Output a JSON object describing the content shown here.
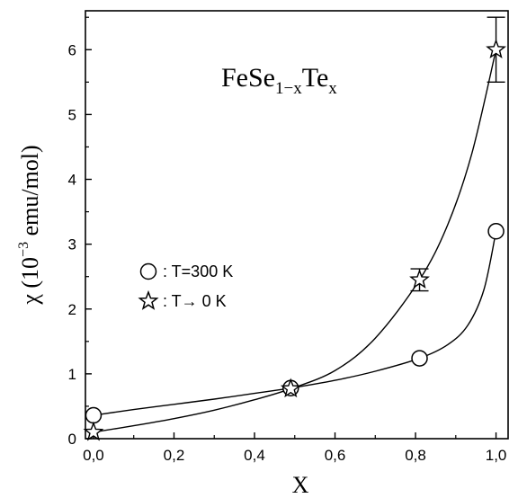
{
  "chart_data": {
    "type": "scatter",
    "title": {
      "base": "FeSe",
      "sub1": "1−x",
      "mid": "Te",
      "sub2": "x"
    },
    "xlabel": "X",
    "ylabel": {
      "prefix": "χ (10",
      "exponent": "−3",
      "suffix": " emu/mol)"
    },
    "xlim": [
      -0.02,
      1.03
    ],
    "ylim": [
      0,
      6.6
    ],
    "x_ticks": [
      0.0,
      0.2,
      0.4,
      0.6,
      0.8,
      1.0
    ],
    "x_tick_labels": [
      "0,0",
      "0,2",
      "0,4",
      "0,6",
      "0,8",
      "1,0"
    ],
    "y_ticks": [
      0,
      1,
      2,
      3,
      4,
      5,
      6
    ],
    "y_tick_labels": [
      "0",
      "1",
      "2",
      "3",
      "4",
      "5",
      "6"
    ],
    "grid": false,
    "legend_position": "middle-left",
    "series": [
      {
        "name": ": T=300 K",
        "marker": "circle",
        "x": [
          0.0,
          0.49,
          0.81,
          1.0
        ],
        "y": [
          0.36,
          0.78,
          1.24,
          3.2
        ],
        "fit_curve": [
          [
            0.0,
            0.36
          ],
          [
            0.1,
            0.45
          ],
          [
            0.2,
            0.53
          ],
          [
            0.3,
            0.61
          ],
          [
            0.4,
            0.7
          ],
          [
            0.49,
            0.78
          ],
          [
            0.6,
            0.9
          ],
          [
            0.7,
            1.04
          ],
          [
            0.81,
            1.24
          ],
          [
            0.88,
            1.45
          ],
          [
            0.93,
            1.75
          ],
          [
            0.97,
            2.3
          ],
          [
            1.0,
            3.2
          ]
        ]
      },
      {
        "name": ": T→ 0 K",
        "marker": "star",
        "x": [
          0.0,
          0.49,
          0.81,
          1.0
        ],
        "y": [
          0.1,
          0.77,
          2.45,
          6.0
        ],
        "yerr": [
          0.03,
          0.04,
          0.17,
          0.5
        ],
        "fit_curve": [
          [
            0.0,
            0.1
          ],
          [
            0.1,
            0.2
          ],
          [
            0.2,
            0.31
          ],
          [
            0.3,
            0.44
          ],
          [
            0.4,
            0.6
          ],
          [
            0.49,
            0.77
          ],
          [
            0.6,
            1.05
          ],
          [
            0.7,
            1.55
          ],
          [
            0.81,
            2.45
          ],
          [
            0.88,
            3.3
          ],
          [
            0.94,
            4.4
          ],
          [
            1.0,
            6.0
          ]
        ]
      }
    ]
  }
}
